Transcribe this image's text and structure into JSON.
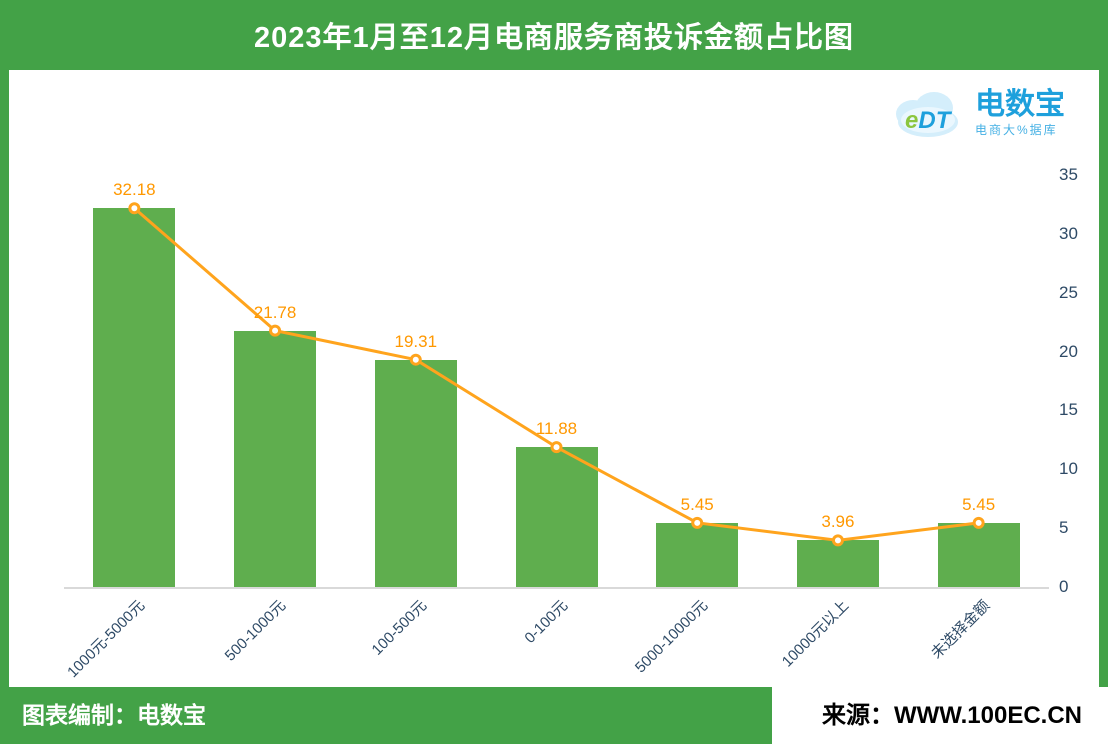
{
  "header": {
    "title": "2023年1月至12月电商服务商投诉金额占比图"
  },
  "logo": {
    "mark_e": "e",
    "mark_dt": "DT",
    "brand": "电数宝",
    "sub": "电商大%据库"
  },
  "footer": {
    "left": "图表编制：电数宝",
    "right": "来源：WWW.100EC.CN"
  },
  "chart_data": {
    "type": "bar",
    "overlay": "line",
    "title": "2023年1月至12月电商服务商投诉金额占比图",
    "categories": [
      "1000元-5000元",
      "500-1000元",
      "100-500元",
      "0-100元",
      "5000-10000元",
      "10000元以上",
      "未选择金额"
    ],
    "values": [
      32.18,
      21.78,
      19.31,
      11.88,
      5.45,
      3.96,
      5.45
    ],
    "labels": [
      "32.18",
      "21.78",
      "19.31",
      "11.88",
      "5.45",
      "3.96",
      "5.45"
    ],
    "ylim": [
      0,
      35
    ],
    "ytick_step": 5,
    "yticks": [
      0,
      5,
      10,
      15,
      20,
      25,
      30,
      35
    ],
    "yaxis_side": "right",
    "grid": false,
    "legend": false,
    "bar_color": "#5fae4e",
    "line_color": "#ffa41d",
    "label_color": "#ff9800",
    "axis_text_color": "#2e4a66",
    "frame_color": "#43a247"
  }
}
